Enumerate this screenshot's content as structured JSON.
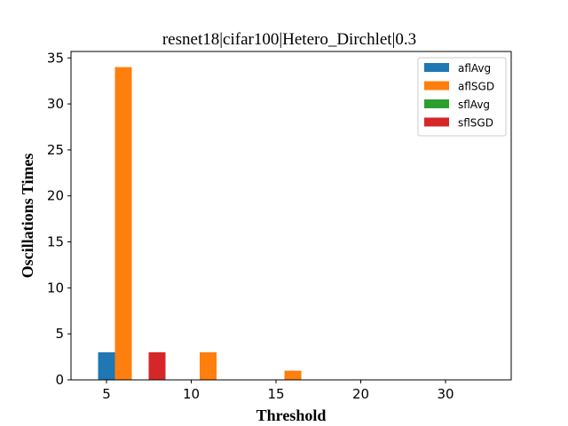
{
  "chart_data": {
    "type": "bar",
    "title": "resnet18|cifar100|Hetero_Dirchlet|0.3",
    "xlabel": "Threshold",
    "ylabel": "Oscillations Times",
    "categories": [
      "5",
      "10",
      "15",
      "20",
      "30"
    ],
    "ylim": [
      0,
      35.7
    ],
    "yticks": [
      0,
      5,
      10,
      15,
      20,
      25,
      30,
      35
    ],
    "grid": false,
    "legend_position": "top-right",
    "series": [
      {
        "name": "aflAvg",
        "color": "#1f77b4",
        "values": [
          3,
          0,
          0,
          0,
          0
        ]
      },
      {
        "name": "aflSGD",
        "color": "#ff7f0e",
        "values": [
          34,
          3,
          1,
          0,
          0
        ]
      },
      {
        "name": "sflAvg",
        "color": "#2ca02c",
        "values": [
          0,
          0,
          0,
          0,
          0
        ]
      },
      {
        "name": "sflSGD",
        "color": "#d62728",
        "values": [
          3,
          0,
          0,
          0,
          0
        ]
      }
    ]
  }
}
